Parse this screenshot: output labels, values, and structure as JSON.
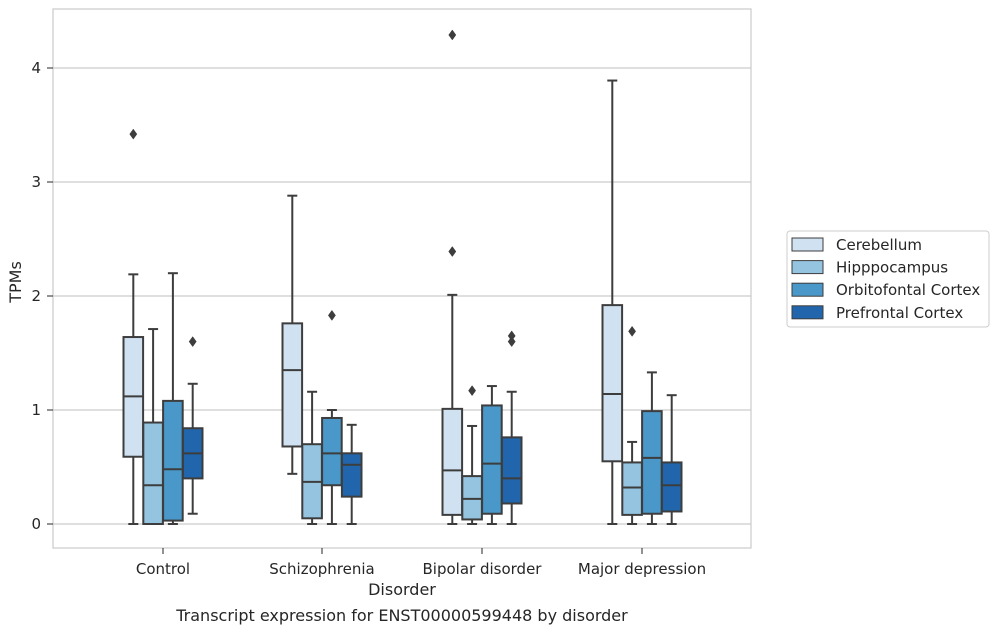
{
  "chart_data": {
    "type": "box",
    "title": "Transcript expression for ENST00000599448 by disorder",
    "xlabel": "Disorder",
    "ylabel": "TPMs",
    "ylim": [
      -0.2,
      4.5
    ],
    "yticks": [
      0,
      1,
      2,
      3,
      4
    ],
    "grid": "horizontal",
    "legend_position": "right",
    "categories": [
      "Control",
      "Schizophrenia",
      "Bipolar disorder",
      "Major depression"
    ],
    "series": [
      {
        "name": "Cerebellum",
        "color": "#d0e1f2",
        "boxes": [
          {
            "whisker_low": 0.0,
            "q1": 0.59,
            "median": 1.12,
            "q3": 1.64,
            "whisker_high": 2.19,
            "outliers": [
              3.42
            ]
          },
          {
            "whisker_low": 0.44,
            "q1": 0.68,
            "median": 1.35,
            "q3": 1.76,
            "whisker_high": 2.88,
            "outliers": []
          },
          {
            "whisker_low": 0.0,
            "q1": 0.08,
            "median": 0.47,
            "q3": 1.01,
            "whisker_high": 2.01,
            "outliers": [
              2.39,
              4.29
            ]
          },
          {
            "whisker_low": 0.0,
            "q1": 0.55,
            "median": 1.14,
            "q3": 1.92,
            "whisker_high": 3.89,
            "outliers": []
          }
        ]
      },
      {
        "name": "Hipppocampus",
        "color": "#94c4df",
        "boxes": [
          {
            "whisker_low": 0.0,
            "q1": 0.0,
            "median": 0.34,
            "q3": 0.89,
            "whisker_high": 1.71,
            "outliers": []
          },
          {
            "whisker_low": 0.0,
            "q1": 0.05,
            "median": 0.37,
            "q3": 0.7,
            "whisker_high": 1.16,
            "outliers": []
          },
          {
            "whisker_low": 0.0,
            "q1": 0.04,
            "median": 0.22,
            "q3": 0.42,
            "whisker_high": 0.86,
            "outliers": [
              1.17
            ]
          },
          {
            "whisker_low": 0.0,
            "q1": 0.08,
            "median": 0.32,
            "q3": 0.54,
            "whisker_high": 0.72,
            "outliers": [
              1.69
            ]
          }
        ]
      },
      {
        "name": "Orbitofontal Cortex",
        "color": "#4a98c9",
        "boxes": [
          {
            "whisker_low": 0.0,
            "q1": 0.03,
            "median": 0.48,
            "q3": 1.08,
            "whisker_high": 2.2,
            "outliers": []
          },
          {
            "whisker_low": 0.0,
            "q1": 0.34,
            "median": 0.62,
            "q3": 0.93,
            "whisker_high": 1.0,
            "outliers": [
              1.83
            ]
          },
          {
            "whisker_low": 0.0,
            "q1": 0.09,
            "median": 0.53,
            "q3": 1.04,
            "whisker_high": 1.21,
            "outliers": []
          },
          {
            "whisker_low": 0.0,
            "q1": 0.09,
            "median": 0.58,
            "q3": 0.99,
            "whisker_high": 1.33,
            "outliers": []
          }
        ]
      },
      {
        "name": "Prefrontal Cortex",
        "color": "#2166ac",
        "boxes": [
          {
            "whisker_low": 0.09,
            "q1": 0.4,
            "median": 0.62,
            "q3": 0.84,
            "whisker_high": 1.23,
            "outliers": [
              1.6
            ]
          },
          {
            "whisker_low": 0.0,
            "q1": 0.24,
            "median": 0.52,
            "q3": 0.62,
            "whisker_high": 0.87,
            "outliers": []
          },
          {
            "whisker_low": 0.0,
            "q1": 0.18,
            "median": 0.4,
            "q3": 0.76,
            "whisker_high": 1.16,
            "outliers": [
              1.6,
              1.65
            ]
          },
          {
            "whisker_low": 0.0,
            "q1": 0.11,
            "median": 0.34,
            "q3": 0.54,
            "whisker_high": 1.13,
            "outliers": []
          }
        ]
      }
    ]
  }
}
